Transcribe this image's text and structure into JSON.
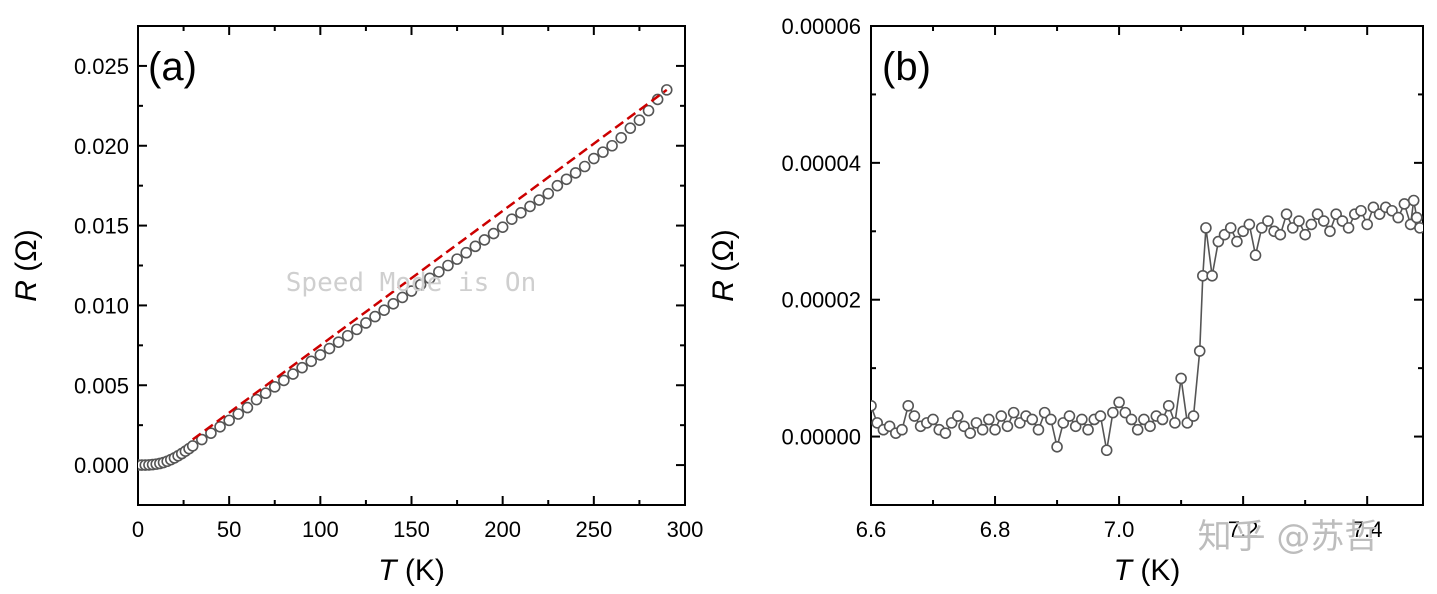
{
  "overlay_text": "Speed Mode is On",
  "watermark": "知乎 @苏哲",
  "chart_data": [
    {
      "type": "scatter",
      "panel_label": "(a)",
      "xlabel_var": "T",
      "xlabel_unit": " (K)",
      "ylabel_var": "R",
      "ylabel_unit": " (Ω)",
      "xlim": [
        0,
        300
      ],
      "ylim": [
        -0.0025,
        0.0275
      ],
      "xticks": [
        0,
        50,
        100,
        150,
        200,
        250,
        300
      ],
      "yticks": [
        0.0,
        0.005,
        0.01,
        0.015,
        0.02,
        0.025
      ],
      "xtick_labels": [
        "0",
        "50",
        "100",
        "150",
        "200",
        "250",
        "300"
      ],
      "ytick_labels": [
        "0.000",
        "0.005",
        "0.010",
        "0.015",
        "0.020",
        "0.025"
      ],
      "fit_line": {
        "color": "#cc0000",
        "style": "dashed",
        "points": [
          [
            30,
            0.0016
          ],
          [
            290,
            0.0235
          ]
        ]
      },
      "series": [
        {
          "marker": "open-circle",
          "color": "#555555",
          "points": [
            [
              0,
              0
            ],
            [
              2,
              0
            ],
            [
              4,
              0
            ],
            [
              6,
              1e-05
            ],
            [
              8,
              3e-05
            ],
            [
              10,
              6e-05
            ],
            [
              12,
              0.0001
            ],
            [
              14,
              0.00016
            ],
            [
              16,
              0.00024
            ],
            [
              18,
              0.00034
            ],
            [
              20,
              0.00045
            ],
            [
              22,
              0.00058
            ],
            [
              24,
              0.00072
            ],
            [
              26,
              0.00087
            ],
            [
              28,
              0.00103
            ],
            [
              30,
              0.0012
            ],
            [
              35,
              0.0016
            ],
            [
              40,
              0.002
            ],
            [
              45,
              0.0024
            ],
            [
              50,
              0.0028
            ],
            [
              55,
              0.0032
            ],
            [
              60,
              0.0036
            ],
            [
              65,
              0.0041
            ],
            [
              70,
              0.0045
            ],
            [
              75,
              0.0049
            ],
            [
              80,
              0.0053
            ],
            [
              85,
              0.0057
            ],
            [
              90,
              0.0061
            ],
            [
              95,
              0.0065
            ],
            [
              100,
              0.0069
            ],
            [
              105,
              0.0073
            ],
            [
              110,
              0.0077
            ],
            [
              115,
              0.0081
            ],
            [
              120,
              0.0085
            ],
            [
              125,
              0.0089
            ],
            [
              130,
              0.0093
            ],
            [
              135,
              0.0097
            ],
            [
              140,
              0.0101
            ],
            [
              145,
              0.0105
            ],
            [
              150,
              0.0109
            ],
            [
              155,
              0.0113
            ],
            [
              160,
              0.0117
            ],
            [
              165,
              0.0121
            ],
            [
              170,
              0.0125
            ],
            [
              175,
              0.0129
            ],
            [
              180,
              0.0133
            ],
            [
              185,
              0.0137
            ],
            [
              190,
              0.0141
            ],
            [
              195,
              0.0145
            ],
            [
              200,
              0.0149
            ],
            [
              205,
              0.0154
            ],
            [
              210,
              0.0158
            ],
            [
              215,
              0.0162
            ],
            [
              220,
              0.0166
            ],
            [
              225,
              0.017
            ],
            [
              230,
              0.0175
            ],
            [
              235,
              0.0179
            ],
            [
              240,
              0.0183
            ],
            [
              245,
              0.0187
            ],
            [
              250,
              0.0192
            ],
            [
              255,
              0.0196
            ],
            [
              260,
              0.02
            ],
            [
              265,
              0.0205
            ],
            [
              270,
              0.0211
            ],
            [
              275,
              0.0216
            ],
            [
              280,
              0.0222
            ],
            [
              285,
              0.0229
            ],
            [
              290,
              0.0235
            ]
          ]
        }
      ]
    },
    {
      "type": "line",
      "panel_label": "(b)",
      "xlabel_var": "T",
      "xlabel_unit": " (K)",
      "ylabel_var": "R",
      "ylabel_unit": " (Ω)",
      "xlim": [
        6.6,
        7.49
      ],
      "ylim": [
        -1e-05,
        6e-05
      ],
      "xticks": [
        6.6,
        6.8,
        7.0,
        7.2,
        7.4
      ],
      "yticks": [
        0.0,
        2e-05,
        4e-05,
        6e-05
      ],
      "xtick_labels": [
        "6.6",
        "6.8",
        "7.0",
        "7.2",
        "7.4"
      ],
      "ytick_labels": [
        "0.00000",
        "0.00002",
        "0.00004",
        "0.00006"
      ],
      "series": [
        {
          "marker": "open-circle",
          "color": "#555555",
          "points": [
            [
              6.6,
              4.5e-06
            ],
            [
              6.61,
              2e-06
            ],
            [
              6.62,
              1e-06
            ],
            [
              6.63,
              1.5e-06
            ],
            [
              6.64,
              5e-07
            ],
            [
              6.65,
              1e-06
            ],
            [
              6.66,
              4.5e-06
            ],
            [
              6.67,
              3e-06
            ],
            [
              6.68,
              1.5e-06
            ],
            [
              6.69,
              2e-06
            ],
            [
              6.7,
              2.5e-06
            ],
            [
              6.71,
              1e-06
            ],
            [
              6.72,
              5e-07
            ],
            [
              6.73,
              2e-06
            ],
            [
              6.74,
              3e-06
            ],
            [
              6.75,
              1.5e-06
            ],
            [
              6.76,
              5e-07
            ],
            [
              6.77,
              2e-06
            ],
            [
              6.78,
              1e-06
            ],
            [
              6.79,
              2.5e-06
            ],
            [
              6.8,
              1e-06
            ],
            [
              6.81,
              3e-06
            ],
            [
              6.82,
              1.5e-06
            ],
            [
              6.83,
              3.5e-06
            ],
            [
              6.84,
              2e-06
            ],
            [
              6.85,
              3e-06
            ],
            [
              6.86,
              2.5e-06
            ],
            [
              6.87,
              1e-06
            ],
            [
              6.88,
              3.5e-06
            ],
            [
              6.89,
              2.5e-06
            ],
            [
              6.9,
              -1.5e-06
            ],
            [
              6.91,
              2e-06
            ],
            [
              6.92,
              3e-06
            ],
            [
              6.93,
              1.5e-06
            ],
            [
              6.94,
              2.5e-06
            ],
            [
              6.95,
              1e-06
            ],
            [
              6.96,
              2.5e-06
            ],
            [
              6.97,
              3e-06
            ],
            [
              6.98,
              -2e-06
            ],
            [
              6.99,
              3.5e-06
            ],
            [
              7.0,
              5e-06
            ],
            [
              7.01,
              3.5e-06
            ],
            [
              7.02,
              2.5e-06
            ],
            [
              7.03,
              1e-06
            ],
            [
              7.04,
              2.5e-06
            ],
            [
              7.05,
              1.5e-06
            ],
            [
              7.06,
              3e-06
            ],
            [
              7.07,
              2.5e-06
            ],
            [
              7.08,
              4.5e-06
            ],
            [
              7.09,
              2e-06
            ],
            [
              7.1,
              8.5e-06
            ],
            [
              7.11,
              2e-06
            ],
            [
              7.12,
              3e-06
            ],
            [
              7.13,
              1.25e-05
            ],
            [
              7.135,
              2.35e-05
            ],
            [
              7.14,
              3.05e-05
            ],
            [
              7.15,
              2.35e-05
            ],
            [
              7.16,
              2.85e-05
            ],
            [
              7.17,
              2.95e-05
            ],
            [
              7.18,
              3.05e-05
            ],
            [
              7.19,
              2.85e-05
            ],
            [
              7.2,
              3e-05
            ],
            [
              7.21,
              3.1e-05
            ],
            [
              7.22,
              2.65e-05
            ],
            [
              7.23,
              3.05e-05
            ],
            [
              7.24,
              3.15e-05
            ],
            [
              7.25,
              3e-05
            ],
            [
              7.26,
              2.95e-05
            ],
            [
              7.27,
              3.25e-05
            ],
            [
              7.28,
              3.05e-05
            ],
            [
              7.29,
              3.15e-05
            ],
            [
              7.3,
              2.95e-05
            ],
            [
              7.31,
              3.1e-05
            ],
            [
              7.32,
              3.25e-05
            ],
            [
              7.33,
              3.15e-05
            ],
            [
              7.34,
              3e-05
            ],
            [
              7.35,
              3.25e-05
            ],
            [
              7.36,
              3.15e-05
            ],
            [
              7.37,
              3.05e-05
            ],
            [
              7.38,
              3.25e-05
            ],
            [
              7.39,
              3.3e-05
            ],
            [
              7.4,
              3.1e-05
            ],
            [
              7.41,
              3.35e-05
            ],
            [
              7.42,
              3.25e-05
            ],
            [
              7.43,
              3.35e-05
            ],
            [
              7.44,
              3.3e-05
            ],
            [
              7.45,
              3.2e-05
            ],
            [
              7.46,
              3.4e-05
            ],
            [
              7.47,
              3.1e-05
            ],
            [
              7.475,
              3.45e-05
            ],
            [
              7.48,
              3.2e-05
            ],
            [
              7.485,
              3.05e-05
            ]
          ]
        }
      ]
    }
  ]
}
